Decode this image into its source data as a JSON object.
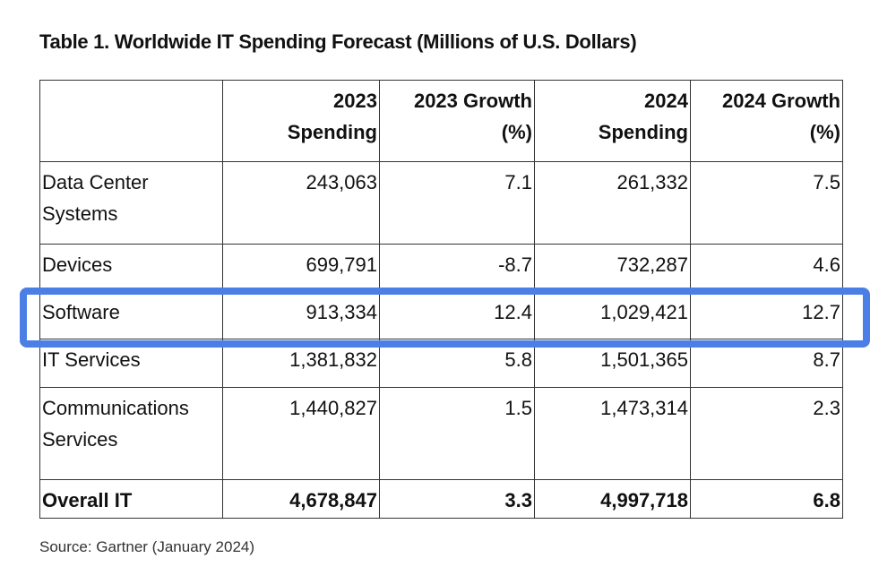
{
  "title": "Table 1. Worldwide IT Spending Forecast (Millions of U.S. Dollars)",
  "table": {
    "header": [
      null,
      [
        "2023",
        "Spending"
      ],
      [
        "2023 Growth",
        "(%)"
      ],
      [
        "2024",
        "Spending"
      ],
      [
        "2024 Growth",
        "(%)"
      ]
    ],
    "rows": [
      [
        "Data Center Systems",
        "243,063",
        "7.1",
        "261,332",
        "7.5"
      ],
      [
        "Devices",
        "699,791",
        "-8.7",
        "732,287",
        "4.6"
      ],
      [
        "Software",
        "913,334",
        "12.4",
        "1,029,421",
        "12.7"
      ],
      [
        "IT Services",
        "1,381,832",
        "5.8",
        "1,501,365",
        "8.7"
      ],
      [
        "Communications Services",
        "1,440,827",
        "1.5",
        "1,473,314",
        "2.3"
      ],
      [
        "Overall IT",
        "4,678,847",
        "3.3",
        "4,997,718",
        "6.8"
      ]
    ]
  },
  "source": "Source: Gartner (January 2024)"
}
